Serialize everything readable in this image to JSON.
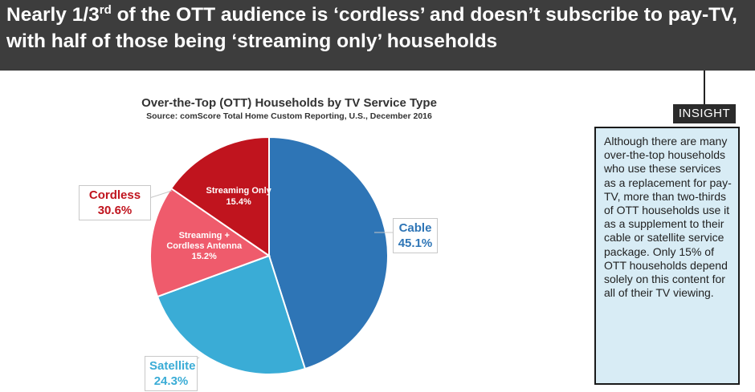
{
  "header": {
    "headline_part1": "Nearly 1/3",
    "headline_sup": "rd",
    "headline_part2": " of the OTT audience is ‘cordless’ and doesn’t subscribe to pay-TV, with half of those being ‘streaming only’ households"
  },
  "chart_data": {
    "type": "pie",
    "title": "Over-the-Top (OTT) Households by TV Service Type",
    "subtitle": "Source: comScore Total Home Custom Reporting, U.S., December 2016",
    "slices": [
      {
        "label": "Cable",
        "value": 45.1,
        "value_label": "45.1%",
        "color": "#2e75b6"
      },
      {
        "label": "Satellite",
        "value": 24.3,
        "value_label": "24.3%",
        "color": "#3aacd6"
      },
      {
        "label": "Streaming + Cordless Antenna",
        "label_line1": "Streaming +",
        "label_line2": "Cordless Antenna",
        "value": 15.2,
        "value_label": "15.2%",
        "color": "#ef5b6c"
      },
      {
        "label": "Streaming Only",
        "value": 15.4,
        "value_label": "15.4%",
        "color": "#c0141e"
      }
    ],
    "group_annotation": {
      "label": "Cordless",
      "value": 30.6,
      "value_label": "30.6%",
      "color": "#c0141e"
    }
  },
  "insight": {
    "tag": "INSIGHT",
    "text": "Although there are many over-the-top households who use these services as a replacement for pay-TV, more than two-thirds of OTT households use it as a supplement to their cable or satellite service package. Only 15% of OTT households depend solely on this content for all of their TV viewing."
  }
}
